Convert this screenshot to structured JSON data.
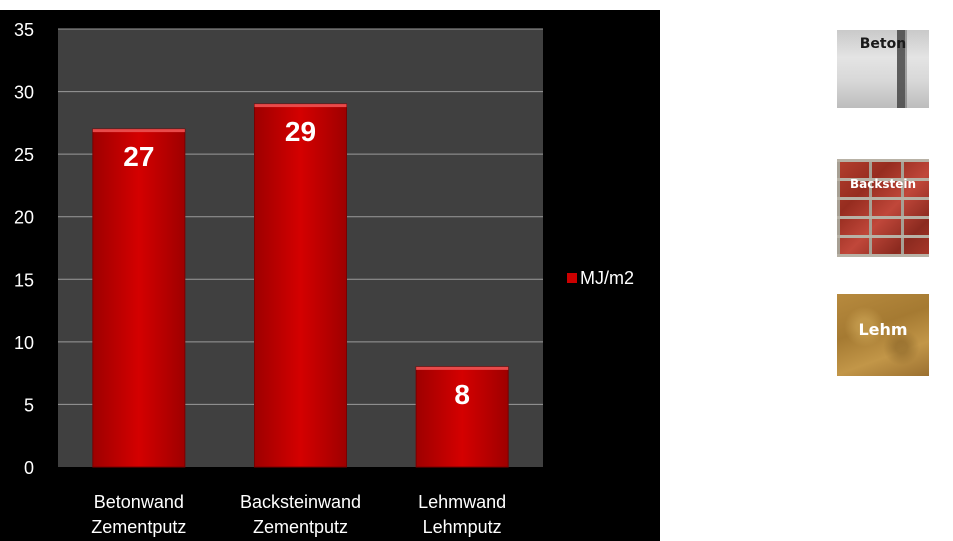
{
  "chart_data": {
    "type": "bar",
    "categories": [
      [
        "Betonwand",
        "Zementputz"
      ],
      [
        "Backsteinwand",
        "Zementputz"
      ],
      [
        "Lehmwand",
        "Lehmputz"
      ]
    ],
    "series": [
      {
        "name": "MJ/m2",
        "values": [
          27,
          29,
          8
        ],
        "color": "#cc0000"
      }
    ],
    "data_labels": [
      "27",
      "29",
      "8"
    ],
    "ylim": [
      0,
      35
    ],
    "yticks": [
      0,
      5,
      10,
      15,
      20,
      25,
      30,
      35
    ],
    "grid": true,
    "legend": "right",
    "title": "",
    "xlabel": "",
    "ylabel": ""
  },
  "colors": {
    "panel_background": "#000000",
    "plot_background": "#404040",
    "gridline": "#9a9a9a",
    "bar": "#cc0000",
    "text": "#ffffff"
  },
  "thumbnails": [
    {
      "label": "Beton"
    },
    {
      "label": "Backstein"
    },
    {
      "label": "Lehm"
    }
  ]
}
